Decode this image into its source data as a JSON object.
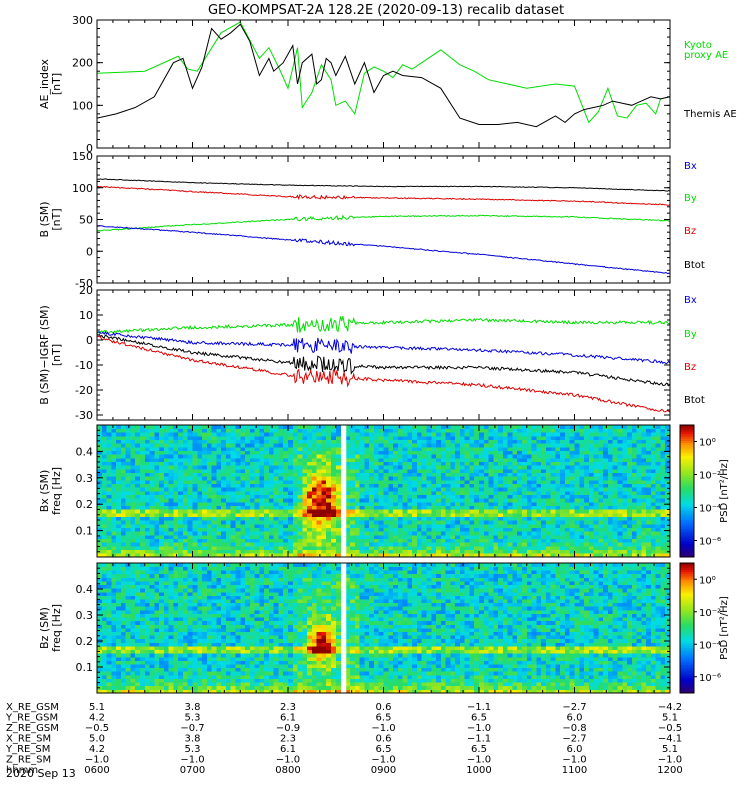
{
  "chart_data": {
    "title": "GEO-KOMPSAT-2A 128.2E (2020-09-13) recalib dataset",
    "time_axis": {
      "hours": [
        "0600",
        "0700",
        "0800",
        "0900",
        "1000",
        "1100",
        "1200"
      ],
      "date": "2020 Sep 13",
      "range_hours": [
        6,
        12
      ]
    },
    "panels": [
      {
        "id": "ae",
        "type": "line",
        "ylabel_lines": [
          "AE_index",
          "[nT]"
        ],
        "ylim": [
          0,
          300
        ],
        "yticks": [
          0,
          100,
          200,
          300
        ],
        "legend": [
          {
            "text": "Kyoto",
            "color": "#00dd00"
          },
          {
            "text": "proxy AE",
            "color": "#00dd00"
          },
          {
            "text": "Themis AE",
            "color": "#000000"
          }
        ],
        "series": [
          {
            "name": "Kyoto proxy AE",
            "color": "#00dd00",
            "x": [
              6.0,
              6.5,
              6.85,
              6.95,
              7.05,
              7.3,
              7.5,
              7.7,
              7.8,
              7.9,
              8.0,
              8.1,
              8.15,
              8.25,
              8.35,
              8.45,
              8.5,
              8.6,
              8.7,
              8.8,
              8.9,
              9.0,
              9.1,
              9.2,
              9.3,
              9.4,
              9.6,
              9.8,
              9.95,
              10.1,
              10.3,
              10.5,
              10.8,
              11.0,
              11.15,
              11.25,
              11.35,
              11.45,
              11.55,
              11.65,
              11.75,
              11.85,
              11.9,
              12.0
            ],
            "y": [
              175,
              180,
              215,
              185,
              180,
              270,
              295,
              210,
              235,
              190,
              140,
              235,
              95,
              130,
              195,
              160,
              100,
              110,
              80,
              175,
              190,
              180,
              165,
              195,
              185,
              200,
              230,
              195,
              180,
              160,
              150,
              140,
              150,
              145,
              60,
              85,
              140,
              75,
              70,
              100,
              105,
              80,
              115,
              120
            ]
          },
          {
            "name": "Themis AE",
            "color": "#000000",
            "x": [
              6.0,
              6.2,
              6.4,
              6.6,
              6.8,
              6.9,
              7.0,
              7.1,
              7.2,
              7.3,
              7.4,
              7.5,
              7.6,
              7.7,
              7.8,
              7.85,
              7.95,
              8.05,
              8.1,
              8.15,
              8.25,
              8.3,
              8.35,
              8.4,
              8.45,
              8.5,
              8.6,
              8.7,
              8.8,
              8.9,
              9.0,
              9.1,
              9.2,
              9.4,
              9.6,
              9.8,
              10.0,
              10.2,
              10.4,
              10.6,
              10.8,
              10.9,
              11.0,
              11.1,
              11.2,
              11.3,
              11.4,
              11.5,
              11.6,
              11.7,
              11.8,
              11.9,
              12.0
            ],
            "y": [
              70,
              80,
              95,
              120,
              200,
              210,
              140,
              190,
              280,
              255,
              270,
              290,
              250,
              170,
              210,
              180,
              200,
              240,
              150,
              200,
              220,
              150,
              160,
              210,
              200,
              170,
              215,
              150,
              200,
              130,
              170,
              180,
              170,
              165,
              140,
              70,
              55,
              55,
              60,
              50,
              75,
              60,
              80,
              90,
              95,
              100,
              110,
              105,
              100,
              110,
              120,
              115,
              120
            ]
          }
        ]
      },
      {
        "id": "b",
        "type": "line",
        "ylabel_lines": [
          "B (SM)",
          "[nT]"
        ],
        "ylim": [
          -50,
          150
        ],
        "yticks": [
          -50,
          0,
          50,
          100,
          150
        ],
        "legend": [
          {
            "text": "Bx",
            "color": "#0000dd"
          },
          {
            "text": "By",
            "color": "#00dd00"
          },
          {
            "text": "Bz",
            "color": "#dd0000"
          },
          {
            "text": "Btot",
            "color": "#000000"
          }
        ],
        "series": [
          {
            "name": "Btot",
            "color": "#000000",
            "x": [
              6,
              7,
              8,
              9,
              10,
              11,
              12
            ],
            "y": [
              114,
              108,
              104,
              102,
              102,
              100,
              95
            ]
          },
          {
            "name": "Bz",
            "color": "#dd0000",
            "x": [
              6,
              7,
              8,
              9,
              10,
              11,
              12
            ],
            "y": [
              102,
              94,
              86,
              84,
              82,
              79,
              73
            ]
          },
          {
            "name": "By",
            "color": "#00dd00",
            "x": [
              6,
              7,
              8,
              9,
              10,
              11,
              12
            ],
            "y": [
              32,
              42,
              50,
              55,
              56,
              54,
              48
            ]
          },
          {
            "name": "Bx",
            "color": "#0000dd",
            "x": [
              6,
              7,
              8,
              9,
              10,
              11,
              12
            ],
            "y": [
              40,
              30,
              18,
              8,
              -5,
              -20,
              -35
            ]
          }
        ]
      },
      {
        "id": "dbirgf",
        "type": "line",
        "ylabel_lines": [
          "B (SM)−IGRF (SM)",
          "[nT]"
        ],
        "ylim": [
          -32,
          20
        ],
        "yticks": [
          -30,
          -20,
          -10,
          0,
          10,
          20
        ],
        "legend": [
          {
            "text": "Bx",
            "color": "#0000dd"
          },
          {
            "text": "By",
            "color": "#00dd00"
          },
          {
            "text": "Bz",
            "color": "#dd0000"
          },
          {
            "text": "Btot",
            "color": "#000000"
          }
        ],
        "series": [
          {
            "name": "By",
            "color": "#00dd00",
            "x": [
              6,
              7,
              8,
              9,
              10,
              11,
              12
            ],
            "y": [
              3,
              5,
              6,
              7,
              8,
              7,
              7
            ]
          },
          {
            "name": "Bx",
            "color": "#0000dd",
            "x": [
              6,
              7,
              8,
              9,
              10,
              11,
              12
            ],
            "y": [
              3,
              -1,
              -2,
              -3,
              -4,
              -6,
              -9
            ]
          },
          {
            "name": "Btot",
            "color": "#000000",
            "x": [
              6,
              7,
              8,
              9,
              10,
              11,
              12
            ],
            "y": [
              2,
              -5,
              -9,
              -11,
              -11,
              -13,
              -18
            ]
          },
          {
            "name": "Bz",
            "color": "#dd0000",
            "x": [
              6,
              7,
              8,
              9,
              10,
              11,
              12
            ],
            "y": [
              1,
              -8,
              -14,
              -16,
              -18,
              -22,
              -29
            ]
          }
        ]
      },
      {
        "id": "bxpsd",
        "type": "heatmap",
        "ylabel_lines": [
          "Bx (SM)",
          "freq [Hz]"
        ],
        "ylim": [
          0,
          0.5
        ],
        "yticks": [
          0.1,
          0.2,
          0.3,
          0.4
        ],
        "colorbar_label": "PSD [nT²/Hz]",
        "colorbar_ticks": [
          "10⁰",
          "10⁻²",
          "10⁻⁴",
          "10⁻⁶"
        ],
        "colorbar_exponents": [
          0,
          -2,
          -4,
          -6
        ],
        "colorbar_range": [
          -7,
          1
        ],
        "data_gap_hours": [
          8.57,
          8.61
        ],
        "enhanced_band_hz": 0.167,
        "hotspot": {
          "hours": [
            8.2,
            8.5
          ],
          "hz": [
            0.1,
            0.33
          ]
        }
      },
      {
        "id": "bzpsd",
        "type": "heatmap",
        "ylabel_lines": [
          "Bz (SM)",
          "freq [Hz]"
        ],
        "ylim": [
          0,
          0.5
        ],
        "yticks": [
          0.1,
          0.2,
          0.3,
          0.4
        ],
        "colorbar_label": "PSD [nT²/Hz]",
        "colorbar_ticks": [
          "10⁰",
          "10⁻²",
          "10⁻⁴",
          "10⁻⁶"
        ],
        "colorbar_exponents": [
          0,
          -2,
          -4,
          -6
        ],
        "colorbar_range": [
          -7,
          1
        ],
        "data_gap_hours": [
          8.57,
          8.61
        ],
        "enhanced_band_hz": 0.167,
        "hotspot": {
          "hours": [
            8.25,
            8.45
          ],
          "hz": [
            0.12,
            0.27
          ]
        }
      }
    ],
    "ephemeris": [
      {
        "label": "X_RE_GSM",
        "values": [
          "5.1",
          "3.8",
          "2.3",
          "0.6",
          "−1.1",
          "−2.7",
          "−4.2"
        ]
      },
      {
        "label": "Y_RE_GSM",
        "values": [
          "4.2",
          "5.3",
          "6.1",
          "6.5",
          "6.5",
          "6.0",
          "5.1"
        ]
      },
      {
        "label": "Z_RE_GSM",
        "values": [
          "−0.5",
          "−0.7",
          "−0.9",
          "−1.0",
          "−1.0",
          "−0.8",
          "−0.5"
        ]
      },
      {
        "label": "X_RE_SM",
        "values": [
          "5.0",
          "3.8",
          "2.3",
          "0.6",
          "−1.1",
          "−2.7",
          "−4.1"
        ]
      },
      {
        "label": "Y_RE_SM",
        "values": [
          "4.2",
          "5.3",
          "6.1",
          "6.5",
          "6.5",
          "6.0",
          "5.1"
        ]
      },
      {
        "label": "Z_RE_SM",
        "values": [
          "−1.0",
          "−1.0",
          "−1.0",
          "−1.0",
          "−1.0",
          "−1.0",
          "−1.0"
        ]
      },
      {
        "label": "hhmm",
        "values": [
          "0600",
          "0700",
          "0800",
          "0900",
          "1000",
          "1100",
          "1200"
        ]
      }
    ]
  }
}
